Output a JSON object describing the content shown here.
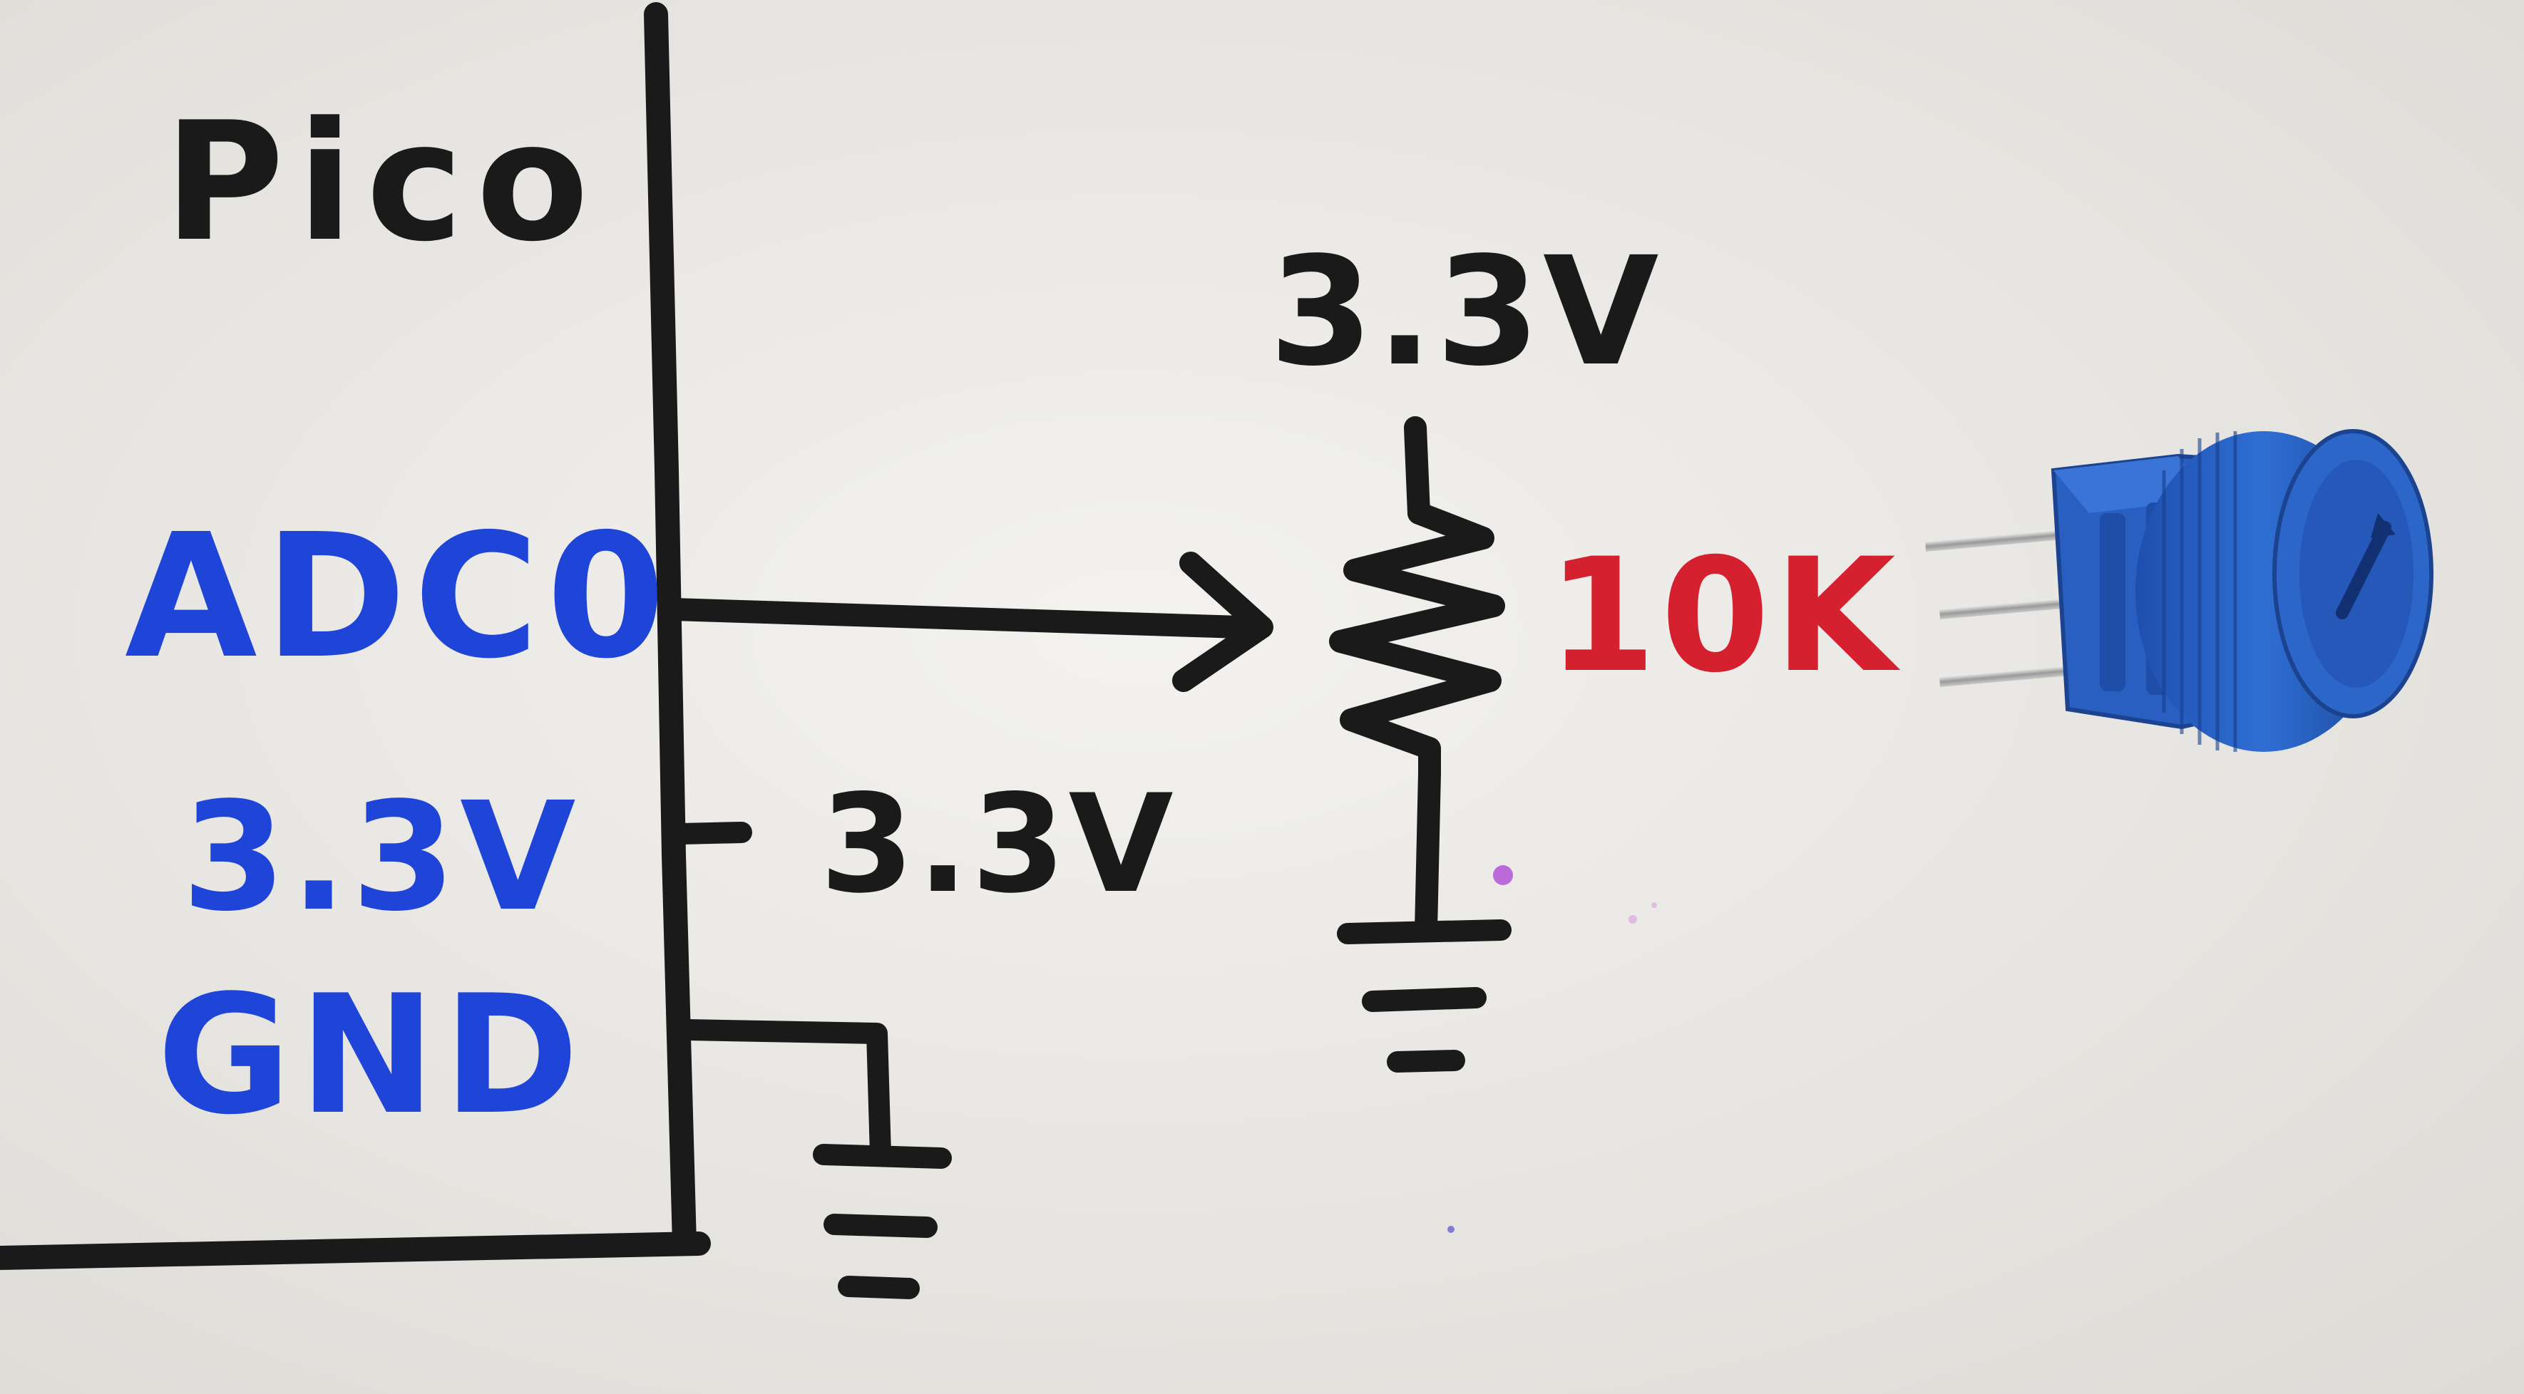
{
  "diagram": {
    "mcu_label": "Pico",
    "pins": {
      "adc": "ADC0",
      "power": "3.3V",
      "ground": "GND"
    },
    "power_rail_label": "3.3V",
    "pot_supply_label": "3.3V",
    "pot_value": "10K"
  },
  "colors": {
    "paper": "#ecebe7",
    "marker_black": "#1a1a1a",
    "marker_blue": "#1f45d8",
    "marker_red": "#d4202f",
    "component_blue": "#2a62c4"
  },
  "icons": {
    "potentiometer_photo": "blue-potentiometer-icon"
  }
}
